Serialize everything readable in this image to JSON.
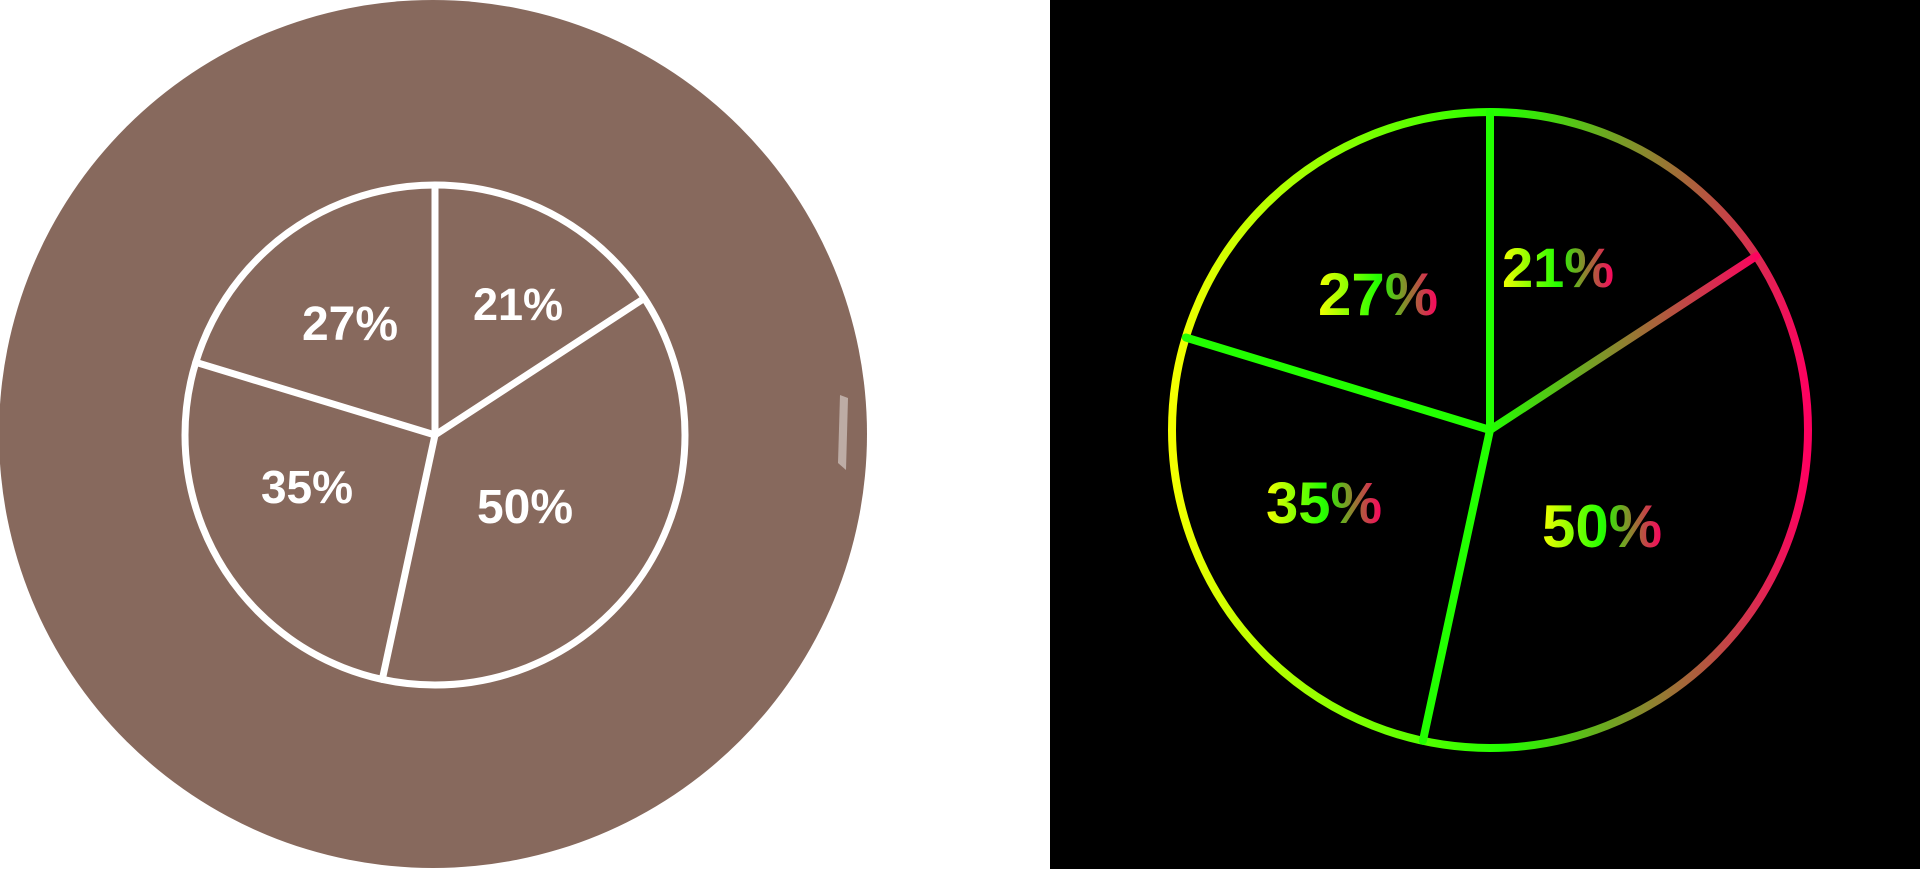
{
  "colors": {
    "left_background": "#ffffff",
    "left_disc": "#87695d",
    "left_stroke": "#ffffff",
    "right_background": "#000000",
    "gradient_yellow": "#f5ff00",
    "gradient_green": "#22ff00",
    "gradient_red": "#ff0060"
  },
  "icons": {
    "left": "pie-chart-icon",
    "right": "pie-chart-gradient-icon"
  },
  "chart_data": [
    {
      "type": "pie",
      "title": "",
      "slices": [
        {
          "label": "21%",
          "value": 21
        },
        {
          "label": "50%",
          "value": 50
        },
        {
          "label": "35%",
          "value": 35
        },
        {
          "label": "27%",
          "value": 27
        }
      ]
    },
    {
      "type": "pie",
      "title": "",
      "slices": [
        {
          "label": "21%",
          "value": 21
        },
        {
          "label": "50%",
          "value": 50
        },
        {
          "label": "35%",
          "value": 35
        },
        {
          "label": "27%",
          "value": 27
        }
      ]
    }
  ]
}
